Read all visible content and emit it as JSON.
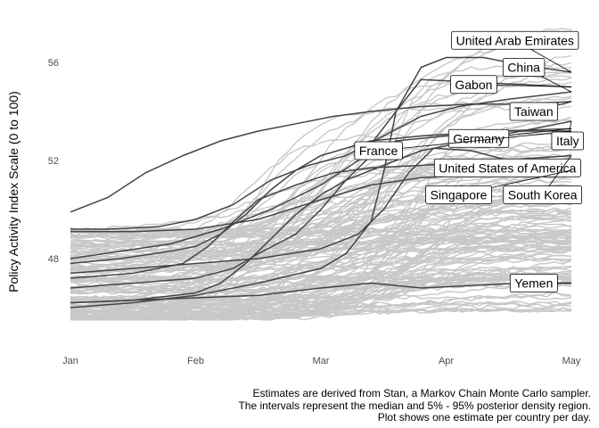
{
  "chart_data": {
    "type": "line",
    "title": "",
    "xlabel": "",
    "ylabel": "Policy Activity Index Scale (0 to 100)",
    "x_ticks": [
      "Jan",
      "Feb",
      "Mar",
      "Apr",
      "May"
    ],
    "x_tick_positions": [
      0,
      1,
      2,
      3,
      4
    ],
    "y_ticks": [
      48,
      52,
      56
    ],
    "ylim": [
      45.3,
      57.9
    ],
    "xlim": [
      -0.05,
      4.05
    ],
    "grid": false,
    "legend": "none",
    "caption": [
      "Estimates are derived from Stan, a Markov Chain Monte Carlo sampler.",
      "The intervals represent the median and 5% - 95% posterior density region.",
      "Plot shows one estimate per country per day."
    ],
    "background_series_count": 150,
    "background_series_note": "grey lines: one estimate per remaining country per day",
    "background_range_start": [
      45.5,
      49.3
    ],
    "background_range_end": [
      45.8,
      57.5
    ],
    "series": [
      {
        "name": "United Arab Emirates",
        "label_x": 3.55,
        "label_y": 56.9,
        "points": [
          [
            0,
            48.0
          ],
          [
            0.4,
            48.3
          ],
          [
            0.8,
            48.6
          ],
          [
            1.2,
            49.2
          ],
          [
            1.6,
            50.0
          ],
          [
            2.0,
            51.0
          ],
          [
            2.3,
            52.0
          ],
          [
            2.6,
            54.0
          ],
          [
            2.8,
            55.8
          ],
          [
            3.0,
            56.2
          ],
          [
            3.3,
            56.2
          ],
          [
            3.6,
            55.9
          ],
          [
            4.0,
            55.6
          ]
        ]
      },
      {
        "name": "China",
        "label_x": 3.62,
        "label_y": 55.8,
        "points": [
          [
            0,
            49.2
          ],
          [
            0.3,
            49.2
          ],
          [
            0.7,
            49.3
          ],
          [
            1.0,
            49.6
          ],
          [
            1.3,
            50.2
          ],
          [
            1.6,
            51.2
          ],
          [
            1.9,
            51.8
          ],
          [
            2.2,
            52.2
          ],
          [
            2.5,
            53.0
          ],
          [
            2.8,
            53.8
          ],
          [
            3.1,
            54.2
          ],
          [
            3.5,
            54.5
          ],
          [
            4.0,
            54.8
          ]
        ]
      },
      {
        "name": "Gabon",
        "label_x": 3.22,
        "label_y": 55.1,
        "points": [
          [
            0,
            46.0
          ],
          [
            0.5,
            46.2
          ],
          [
            1.0,
            46.5
          ],
          [
            1.5,
            47.0
          ],
          [
            2.0,
            47.6
          ],
          [
            2.2,
            48.2
          ],
          [
            2.4,
            49.5
          ],
          [
            2.5,
            51.5
          ],
          [
            2.6,
            54.0
          ],
          [
            2.8,
            55.3
          ],
          [
            3.2,
            55.2
          ],
          [
            3.6,
            55.1
          ],
          [
            4.0,
            55.0
          ]
        ]
      },
      {
        "name": "Taiwan",
        "label_x": 3.7,
        "label_y": 54.0,
        "points": [
          [
            0,
            49.9
          ],
          [
            0.3,
            50.5
          ],
          [
            0.6,
            51.5
          ],
          [
            0.9,
            52.2
          ],
          [
            1.2,
            52.8
          ],
          [
            1.5,
            53.2
          ],
          [
            1.8,
            53.5
          ],
          [
            2.1,
            53.8
          ],
          [
            2.4,
            54.0
          ],
          [
            2.8,
            54.2
          ],
          [
            3.2,
            54.3
          ],
          [
            3.6,
            54.3
          ],
          [
            4.0,
            54.4
          ]
        ]
      },
      {
        "name": "Germany",
        "label_x": 3.26,
        "label_y": 52.9,
        "points": [
          [
            0,
            47.8
          ],
          [
            0.4,
            48.0
          ],
          [
            0.8,
            48.3
          ],
          [
            1.0,
            48.5
          ],
          [
            1.2,
            49.0
          ],
          [
            1.4,
            49.8
          ],
          [
            1.6,
            50.8
          ],
          [
            1.8,
            51.6
          ],
          [
            2.0,
            52.2
          ],
          [
            2.4,
            52.8
          ],
          [
            2.8,
            53.0
          ],
          [
            3.4,
            53.2
          ],
          [
            4.0,
            53.3
          ]
        ]
      },
      {
        "name": "France",
        "label_x": 2.46,
        "label_y": 52.4,
        "points": [
          [
            0,
            46.8
          ],
          [
            0.5,
            47.0
          ],
          [
            1.0,
            47.2
          ],
          [
            1.3,
            47.6
          ],
          [
            1.5,
            48.2
          ],
          [
            1.8,
            49.0
          ],
          [
            2.0,
            50.0
          ],
          [
            2.2,
            51.2
          ],
          [
            2.4,
            52.2
          ],
          [
            2.6,
            52.8
          ],
          [
            3.0,
            53.0
          ],
          [
            3.5,
            53.2
          ],
          [
            4.0,
            53.2
          ]
        ]
      },
      {
        "name": "Italy",
        "label_x": 3.97,
        "label_y": 52.8,
        "points": [
          [
            0,
            46.2
          ],
          [
            0.5,
            46.3
          ],
          [
            1.0,
            46.6
          ],
          [
            1.2,
            47.0
          ],
          [
            1.4,
            47.8
          ],
          [
            1.6,
            48.8
          ],
          [
            1.8,
            49.8
          ],
          [
            2.0,
            50.6
          ],
          [
            2.2,
            51.2
          ],
          [
            2.4,
            51.6
          ],
          [
            2.8,
            52.4
          ],
          [
            3.4,
            53.0
          ],
          [
            4.0,
            53.6
          ]
        ]
      },
      {
        "name": "United States of America",
        "label_x": 3.49,
        "label_y": 51.7,
        "points": [
          [
            0,
            47.4
          ],
          [
            0.5,
            47.6
          ],
          [
            1.0,
            47.8
          ],
          [
            1.5,
            48.0
          ],
          [
            2.0,
            48.4
          ],
          [
            2.3,
            49.0
          ],
          [
            2.5,
            50.0
          ],
          [
            2.7,
            51.5
          ],
          [
            2.9,
            52.5
          ],
          [
            3.2,
            52.4
          ],
          [
            3.5,
            52.0
          ],
          [
            3.8,
            51.9
          ],
          [
            4.0,
            52.0
          ]
        ]
      },
      {
        "name": "Singapore",
        "label_x": 3.1,
        "label_y": 50.6,
        "points": [
          [
            0,
            49.1
          ],
          [
            0.5,
            49.1
          ],
          [
            1.0,
            49.2
          ],
          [
            1.5,
            49.6
          ],
          [
            2.0,
            50.4
          ],
          [
            2.4,
            51.0
          ],
          [
            2.8,
            51.3
          ],
          [
            3.2,
            51.4
          ],
          [
            3.6,
            51.5
          ],
          [
            4.0,
            51.6
          ]
        ]
      },
      {
        "name": "South Korea",
        "label_x": 3.77,
        "label_y": 50.6,
        "points": [
          [
            0,
            47.2
          ],
          [
            0.5,
            47.4
          ],
          [
            0.9,
            47.8
          ],
          [
            1.1,
            48.5
          ],
          [
            1.3,
            49.5
          ],
          [
            1.5,
            50.4
          ],
          [
            1.8,
            51.0
          ],
          [
            2.1,
            51.5
          ],
          [
            2.4,
            51.7
          ],
          [
            2.8,
            51.8
          ],
          [
            3.4,
            52.0
          ],
          [
            4.0,
            52.2
          ]
        ]
      },
      {
        "name": "Yemen",
        "label_x": 3.7,
        "label_y": 47.0,
        "points": [
          [
            0,
            46.2
          ],
          [
            0.5,
            46.3
          ],
          [
            1.0,
            46.4
          ],
          [
            1.5,
            46.5
          ],
          [
            2.0,
            46.8
          ],
          [
            2.4,
            47.0
          ],
          [
            2.8,
            46.8
          ],
          [
            3.2,
            46.9
          ],
          [
            3.6,
            47.0
          ],
          [
            4.0,
            47.0
          ]
        ]
      }
    ]
  }
}
